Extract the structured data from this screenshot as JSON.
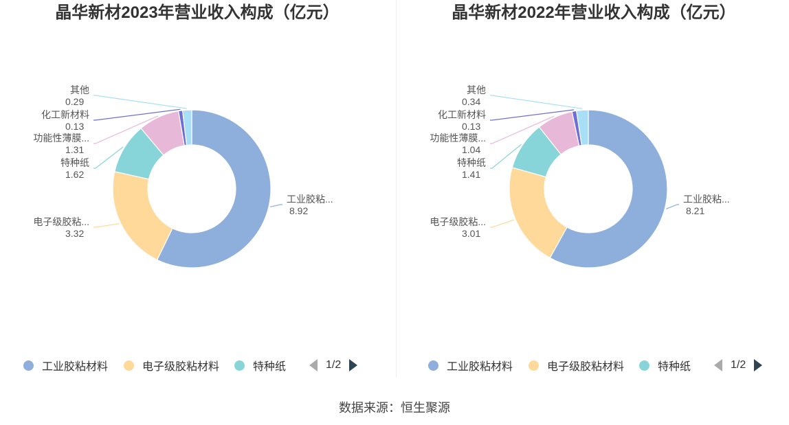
{
  "source": "数据来源：恒生聚源",
  "chart_data": [
    {
      "type": "pie",
      "title": "晶华新材2023年营业收入构成（亿元）",
      "slices": [
        {
          "name": "工业胶粘材料",
          "label": "工业胶粘...",
          "value": 8.92,
          "value_label": "8.92",
          "color": "#8eaedb"
        },
        {
          "name": "电子级胶粘材料",
          "label": "电子级胶粘...",
          "value": 3.32,
          "value_label": "3.32",
          "color": "#ffd99a"
        },
        {
          "name": "特种纸",
          "label": "特种纸",
          "value": 1.62,
          "value_label": "1.62",
          "color": "#88d5d9"
        },
        {
          "name": "功能性薄膜...",
          "label": "功能性薄膜...",
          "value": 1.31,
          "value_label": "1.31",
          "color": "#e8b8d9"
        },
        {
          "name": "化工新材料",
          "label": "化工新材料",
          "value": 0.13,
          "value_label": "0.13",
          "color": "#6d6fd4"
        },
        {
          "name": "其他",
          "label": "其他",
          "value": 0.29,
          "value_label": "0.29",
          "color": "#a8dff7"
        }
      ],
      "legend": {
        "placement": "bottom",
        "items": [
          "工业胶粘材料",
          "电子级胶粘材料",
          "特种纸"
        ],
        "page": "1/2"
      }
    },
    {
      "type": "pie",
      "title": "晶华新材2022年营业收入构成（亿元）",
      "slices": [
        {
          "name": "工业胶粘材料",
          "label": "工业胶粘...",
          "value": 8.21,
          "value_label": "8.21",
          "color": "#8eaedb"
        },
        {
          "name": "电子级胶粘材料",
          "label": "电子级胶粘...",
          "value": 3.01,
          "value_label": "3.01",
          "color": "#ffd99a"
        },
        {
          "name": "特种纸",
          "label": "特种纸",
          "value": 1.41,
          "value_label": "1.41",
          "color": "#88d5d9"
        },
        {
          "name": "功能性薄膜...",
          "label": "功能性薄膜...",
          "value": 1.04,
          "value_label": "1.04",
          "color": "#e8b8d9"
        },
        {
          "name": "化工新材料",
          "label": "化工新材料",
          "value": 0.13,
          "value_label": "0.13",
          "color": "#6d6fd4"
        },
        {
          "name": "其他",
          "label": "其他",
          "value": 0.34,
          "value_label": "0.34",
          "color": "#a8dff7"
        }
      ],
      "legend": {
        "placement": "bottom",
        "items": [
          "工业胶粘材料",
          "电子级胶粘材料",
          "特种纸"
        ],
        "page": "1/2"
      }
    }
  ]
}
